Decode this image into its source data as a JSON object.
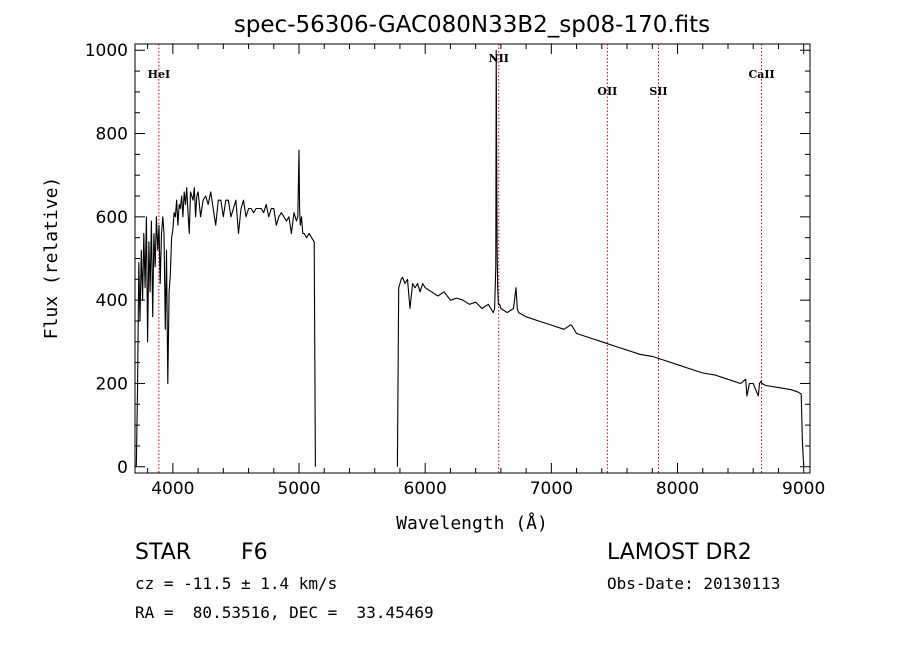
{
  "chart_data": {
    "type": "line",
    "title": "spec-56306-GAC080N33B2_sp08-170.fits",
    "xlabel": "Wavelength (Å)",
    "ylabel": "Flux (relative)",
    "xlim": [
      3700,
      9050
    ],
    "ylim": [
      -15,
      1015
    ],
    "xticks": [
      "4000",
      "5000",
      "6000",
      "7000",
      "8000",
      "9000"
    ],
    "yticks": [
      "0",
      "200",
      "400",
      "600",
      "800",
      "1000"
    ],
    "grid": false,
    "line_color": "#000000",
    "marker_color": "#cc0000",
    "lines": [
      {
        "label": "HeI",
        "x": 3889
      },
      {
        "label": "NII",
        "x": 6583
      },
      {
        "label": "OII",
        "x": 7444
      },
      {
        "label": "SII",
        "x": 7849
      },
      {
        "label": "CaII",
        "x": 8666
      }
    ],
    "series": [
      {
        "x": [
          3710,
          3720,
          3730,
          3740,
          3750,
          3760,
          3770,
          3780,
          3790,
          3800,
          3810,
          3820,
          3830,
          3840,
          3850,
          3860,
          3870,
          3880,
          3890,
          3900,
          3910,
          3920,
          3930,
          3940,
          3950,
          3960,
          3970,
          3980,
          3990,
          4000,
          4010,
          4020,
          4030,
          4040,
          4050,
          4060,
          4070,
          4080,
          4090,
          4100,
          4110,
          4120,
          4130,
          4140,
          4150,
          4160,
          4170,
          4180,
          4190,
          4200,
          4220,
          4240,
          4260,
          4280,
          4300,
          4320,
          4340,
          4360,
          4380,
          4400,
          4420,
          4440,
          4460,
          4480,
          4500,
          4520,
          4540,
          4560,
          4580,
          4600,
          4620,
          4640,
          4660,
          4680,
          4700,
          4720,
          4740,
          4760,
          4780,
          4800,
          4820,
          4840,
          4860,
          4880,
          4900,
          4920,
          4940,
          4960,
          4980,
          4990,
          5000,
          5005,
          5010,
          5020,
          5030,
          5040,
          5060,
          5080,
          5100,
          5110,
          5120,
          5130
        ],
        "y": [
          0,
          180,
          490,
          350,
          520,
          400,
          560,
          430,
          600,
          300,
          540,
          420,
          590,
          360,
          560,
          480,
          600,
          520,
          580,
          440,
          560,
          600,
          560,
          330,
          520,
          200,
          420,
          460,
          550,
          570,
          610,
          600,
          640,
          580,
          630,
          620,
          650,
          600,
          660,
          630,
          670,
          610,
          560,
          660,
          650,
          640,
          670,
          600,
          650,
          660,
          600,
          640,
          650,
          630,
          660,
          620,
          580,
          640,
          640,
          600,
          640,
          640,
          600,
          620,
          640,
          560,
          620,
          640,
          600,
          620,
          620,
          610,
          620,
          620,
          620,
          610,
          630,
          600,
          620,
          620,
          580,
          600,
          610,
          600,
          590,
          600,
          560,
          610,
          590,
          600,
          760,
          620,
          580,
          600,
          560,
          560,
          550,
          560,
          550,
          545,
          540,
          0
        ]
      },
      {
        "x": [
          5780,
          5790,
          5800,
          5810,
          5820,
          5840,
          5860,
          5880,
          5900,
          5920,
          5940,
          5960,
          5980,
          6000,
          6050,
          6100,
          6150,
          6200,
          6250,
          6300,
          6350,
          6400,
          6450,
          6500,
          6540,
          6550,
          6560,
          6563,
          6570,
          6575,
          6580,
          6590,
          6600,
          6650,
          6700,
          6720,
          6730,
          6740,
          6800,
          6900,
          7000,
          7100,
          7150,
          7160,
          7200,
          7300,
          7400,
          7500,
          7600,
          7700,
          7800,
          7900,
          8000,
          8100,
          8200,
          8300,
          8400,
          8500,
          8540,
          8550,
          8560,
          8570,
          8600,
          8640,
          8650,
          8660,
          8670,
          8700,
          8800,
          8900,
          8950,
          8980,
          8990,
          9000
        ],
        "y": [
          0,
          430,
          440,
          450,
          455,
          440,
          450,
          380,
          440,
          430,
          440,
          420,
          440,
          430,
          420,
          410,
          420,
          400,
          405,
          400,
          390,
          395,
          380,
          390,
          370,
          380,
          480,
          1000,
          520,
          430,
          390,
          390,
          380,
          370,
          380,
          430,
          380,
          370,
          360,
          350,
          340,
          330,
          340,
          340,
          320,
          310,
          300,
          290,
          280,
          270,
          265,
          255,
          245,
          235,
          225,
          220,
          210,
          200,
          210,
          170,
          185,
          200,
          200,
          170,
          200,
          205,
          200,
          195,
          190,
          185,
          180,
          175,
          60,
          0
        ]
      }
    ]
  },
  "info": {
    "object_class": "STAR",
    "subclass": "F6",
    "survey": "LAMOST DR2",
    "redshift": "cz = -11.5 ± 1.4 km/s",
    "obs_date": "Obs-Date: 20130113",
    "coords": "RA =  80.53516, DEC =  33.45469"
  }
}
